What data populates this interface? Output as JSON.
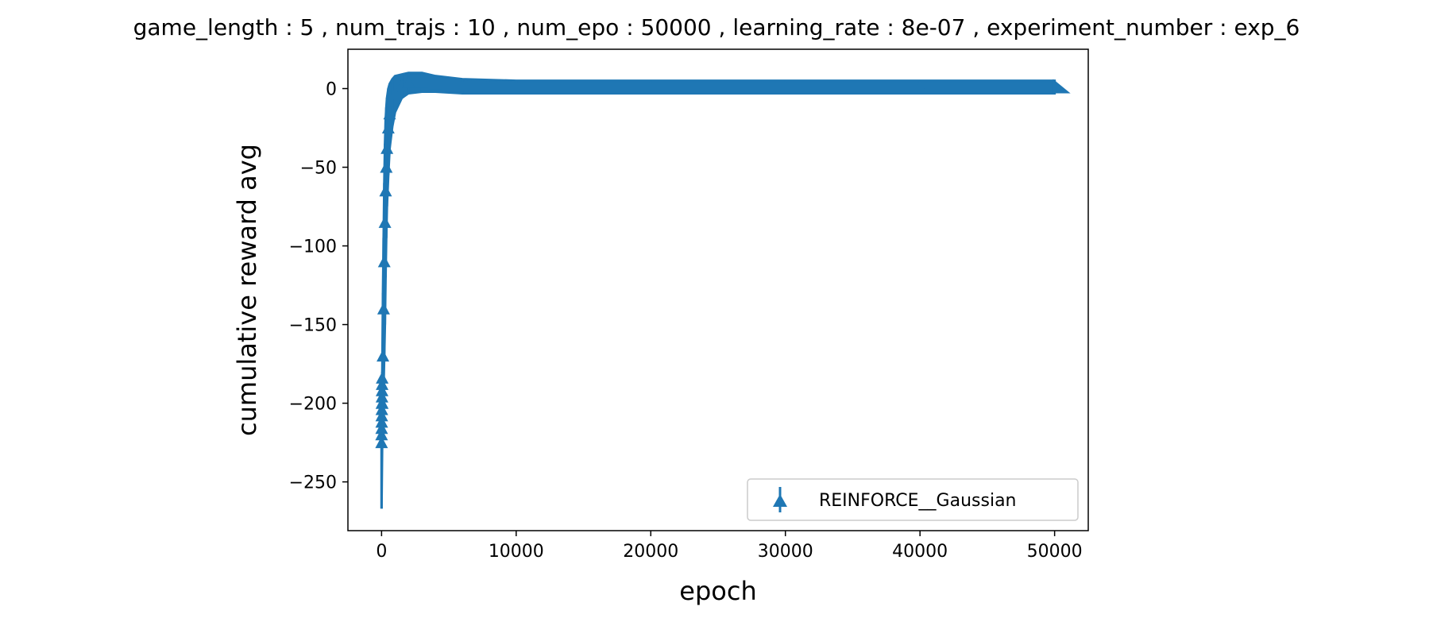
{
  "chart_data": {
    "type": "line",
    "title": "game_length : 5 , num_trajs : 10 , num_epo : 50000 , learning_rate : 8e-07 , experiment_number : exp_6",
    "xlabel": "epoch",
    "ylabel": "cumulative reward avg",
    "xlim": [
      -2500,
      52500
    ],
    "ylim": [
      -281,
      25
    ],
    "xticks": [
      0,
      10000,
      20000,
      30000,
      40000,
      50000
    ],
    "xtick_labels": [
      "0",
      "10000",
      "20000",
      "30000",
      "40000",
      "50000"
    ],
    "yticks": [
      0,
      -50,
      -100,
      -150,
      -200,
      -250
    ],
    "ytick_labels": [
      "0",
      "−50",
      "−100",
      "−150",
      "−200",
      "−250"
    ],
    "grid": false,
    "legend": {
      "placement": "lower-right",
      "entries": [
        "REINFORCE__Gaussian"
      ]
    },
    "series": [
      {
        "name": "REINFORCE__Gaussian",
        "color": "#1f77b4",
        "marker": "triangle-up-errorbar",
        "points": [
          {
            "x": 0,
            "y": -225,
            "lo": -267,
            "hi": -220
          },
          {
            "x": 50,
            "y": -200,
            "lo": -225,
            "hi": -180
          },
          {
            "x": 100,
            "y": -170,
            "lo": -210,
            "hi": -130
          },
          {
            "x": 150,
            "y": -140,
            "lo": -190,
            "hi": -95
          },
          {
            "x": 200,
            "y": -110,
            "lo": -170,
            "hi": -60
          },
          {
            "x": 250,
            "y": -85,
            "lo": -150,
            "hi": -35
          },
          {
            "x": 300,
            "y": -65,
            "lo": -120,
            "hi": -20
          },
          {
            "x": 350,
            "y": -50,
            "lo": -95,
            "hi": -12
          },
          {
            "x": 400,
            "y": -38,
            "lo": -75,
            "hi": -6
          },
          {
            "x": 500,
            "y": -25,
            "lo": -55,
            "hi": 0
          },
          {
            "x": 600,
            "y": -16,
            "lo": -38,
            "hi": 3
          },
          {
            "x": 800,
            "y": -8,
            "lo": -24,
            "hi": 6
          },
          {
            "x": 1000,
            "y": -3,
            "lo": -15,
            "hi": 8
          },
          {
            "x": 1500,
            "y": 2,
            "lo": -6,
            "hi": 9
          },
          {
            "x": 2000,
            "y": 4,
            "lo": -3,
            "hi": 10
          },
          {
            "x": 3000,
            "y": 4,
            "lo": -2,
            "hi": 10
          },
          {
            "x": 4000,
            "y": 3,
            "lo": -2,
            "hi": 8
          },
          {
            "x": 6000,
            "y": 2,
            "lo": -3,
            "hi": 6
          },
          {
            "x": 10000,
            "y": 1,
            "lo": -3,
            "hi": 5
          },
          {
            "x": 20000,
            "y": 1,
            "lo": -3,
            "hi": 5
          },
          {
            "x": 30000,
            "y": 1,
            "lo": -3,
            "hi": 5
          },
          {
            "x": 40000,
            "y": 1,
            "lo": -3,
            "hi": 5
          },
          {
            "x": 50000,
            "y": 1,
            "lo": -3,
            "hi": 5
          }
        ]
      }
    ]
  }
}
